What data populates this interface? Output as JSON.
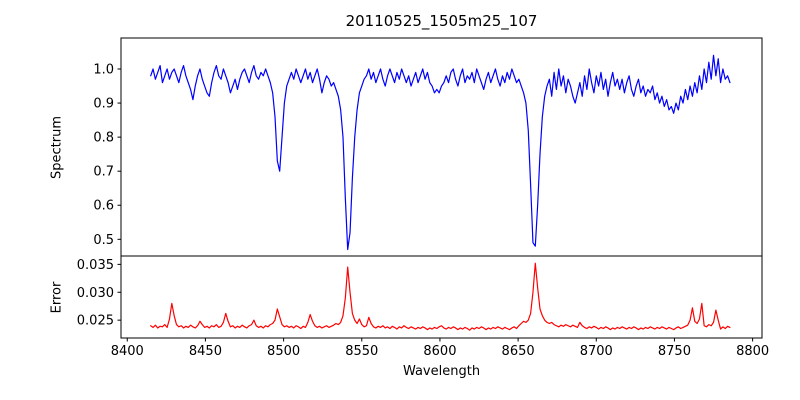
{
  "title": "20110525_1505m25_107",
  "colors": {
    "background": "#ffffff",
    "axis": "#000000",
    "spectrum_line": "#0000ff",
    "error_line": "#ff0000"
  },
  "chart_data": [
    {
      "type": "line",
      "panel": "top",
      "title": "20110525_1505m25_107",
      "ylabel": "Spectrum",
      "grid": false,
      "legend": "none",
      "xlim": [
        8396,
        8806
      ],
      "ylim": [
        0.451,
        1.091
      ],
      "yticks": [
        0.5,
        0.6,
        0.7,
        0.8,
        0.9,
        1.0
      ],
      "ytick_labels": [
        "0.5",
        "0.6",
        "0.7",
        "0.8",
        "0.9",
        "1.0"
      ],
      "x_start": 8415,
      "x_step": 1.5,
      "series": [
        {
          "name": "spectrum",
          "color": "#0000ff",
          "values": [
            0.98,
            1.0,
            0.97,
            0.99,
            1.01,
            0.96,
            0.98,
            1.0,
            0.97,
            0.99,
            1.0,
            0.98,
            0.96,
            0.99,
            1.01,
            0.98,
            0.96,
            0.94,
            0.91,
            0.95,
            0.98,
            1.0,
            0.97,
            0.95,
            0.93,
            0.92,
            0.96,
            0.99,
            1.01,
            0.98,
            0.97,
            1.0,
            0.98,
            0.96,
            0.93,
            0.95,
            0.97,
            0.94,
            0.97,
            0.99,
            1.0,
            0.98,
            0.96,
            0.99,
            1.01,
            0.98,
            0.97,
            0.99,
            0.98,
            1.0,
            0.98,
            0.96,
            0.93,
            0.86,
            0.73,
            0.7,
            0.8,
            0.9,
            0.95,
            0.97,
            0.99,
            0.97,
            1.0,
            0.98,
            0.96,
            0.98,
            1.0,
            0.97,
            0.99,
            0.96,
            0.98,
            1.0,
            0.97,
            0.93,
            0.96,
            0.98,
            0.97,
            0.95,
            0.96,
            0.94,
            0.92,
            0.88,
            0.8,
            0.62,
            0.47,
            0.52,
            0.68,
            0.8,
            0.88,
            0.93,
            0.95,
            0.97,
            0.98,
            1.0,
            0.97,
            0.99,
            0.96,
            0.98,
            1.0,
            0.97,
            0.95,
            0.98,
            1.0,
            0.98,
            0.96,
            0.99,
            0.97,
            1.0,
            0.98,
            0.96,
            0.98,
            0.95,
            0.97,
            0.99,
            0.96,
            0.98,
            1.0,
            0.97,
            0.99,
            0.96,
            0.95,
            0.93,
            0.94,
            0.93,
            0.95,
            0.96,
            0.98,
            0.96,
            0.99,
            1.0,
            0.97,
            0.95,
            0.98,
            1.0,
            0.96,
            0.98,
            0.97,
            0.99,
            0.96,
            1.0,
            0.98,
            0.96,
            0.94,
            0.97,
            0.99,
            0.96,
            0.98,
            1.0,
            0.97,
            0.95,
            0.98,
            0.96,
            0.99,
            0.97,
            1.0,
            0.98,
            0.96,
            0.97,
            0.95,
            0.93,
            0.9,
            0.82,
            0.66,
            0.49,
            0.48,
            0.6,
            0.75,
            0.86,
            0.92,
            0.95,
            0.97,
            0.92,
            0.99,
            0.94,
            1.0,
            0.95,
            0.98,
            0.93,
            0.97,
            0.95,
            0.92,
            0.9,
            0.93,
            0.96,
            0.92,
            0.98,
            0.94,
            1.0,
            0.96,
            0.93,
            0.98,
            0.95,
            0.99,
            0.94,
            0.97,
            0.92,
            0.96,
            0.99,
            0.95,
            0.97,
            0.94,
            0.97,
            0.93,
            0.96,
            0.98,
            0.94,
            0.92,
            0.95,
            0.97,
            0.93,
            0.95,
            0.92,
            0.94,
            0.93,
            0.95,
            0.91,
            0.93,
            0.9,
            0.92,
            0.89,
            0.91,
            0.88,
            0.89,
            0.87,
            0.9,
            0.88,
            0.92,
            0.9,
            0.94,
            0.91,
            0.95,
            0.92,
            0.96,
            0.93,
            0.98,
            0.94,
            1.0,
            0.96,
            1.02,
            0.97,
            1.04,
            0.98,
            1.03,
            0.96,
            1.0,
            0.97,
            0.98,
            0.96
          ]
        }
      ]
    },
    {
      "type": "line",
      "panel": "bottom",
      "ylabel": "Error",
      "xlabel": "Wavelength",
      "grid": false,
      "legend": "none",
      "xlim": [
        8396,
        8806
      ],
      "ylim": [
        0.0218,
        0.0365
      ],
      "yticks": [
        0.025,
        0.03,
        0.035
      ],
      "ytick_labels": [
        "0.025",
        "0.030",
        "0.035"
      ],
      "xticks": [
        8400,
        8450,
        8500,
        8550,
        8600,
        8650,
        8700,
        8750,
        8800
      ],
      "xtick_labels": [
        "8400",
        "8450",
        "8500",
        "8550",
        "8600",
        "8650",
        "8700",
        "8750",
        "8800"
      ],
      "x_start": 8415,
      "x_step": 1.5,
      "series": [
        {
          "name": "error",
          "color": "#ff0000",
          "values": [
            0.024,
            0.0237,
            0.0241,
            0.0236,
            0.0239,
            0.0238,
            0.0242,
            0.0237,
            0.0252,
            0.028,
            0.0258,
            0.0242,
            0.0238,
            0.024,
            0.0236,
            0.0239,
            0.0237,
            0.0241,
            0.0238,
            0.0236,
            0.024,
            0.0248,
            0.0242,
            0.0237,
            0.0239,
            0.0236,
            0.024,
            0.0238,
            0.0242,
            0.0237,
            0.0239,
            0.0246,
            0.0262,
            0.0248,
            0.0238,
            0.024,
            0.0236,
            0.0239,
            0.0237,
            0.0241,
            0.0238,
            0.0236,
            0.024,
            0.0242,
            0.025,
            0.024,
            0.0237,
            0.0239,
            0.0236,
            0.024,
            0.0238,
            0.0242,
            0.0244,
            0.025,
            0.027,
            0.0256,
            0.0242,
            0.0238,
            0.024,
            0.0237,
            0.0239,
            0.0236,
            0.024,
            0.0238,
            0.0235,
            0.0239,
            0.0237,
            0.0246,
            0.026,
            0.0248,
            0.024,
            0.0237,
            0.0239,
            0.0236,
            0.0238,
            0.024,
            0.0237,
            0.0239,
            0.0241,
            0.0244,
            0.0242,
            0.0246,
            0.0258,
            0.029,
            0.0345,
            0.03,
            0.0262,
            0.025,
            0.0244,
            0.0252,
            0.0242,
            0.0238,
            0.024,
            0.0255,
            0.0244,
            0.0238,
            0.0236,
            0.0239,
            0.0237,
            0.024,
            0.0236,
            0.0238,
            0.0235,
            0.0239,
            0.0237,
            0.0234,
            0.0238,
            0.0236,
            0.024,
            0.0237,
            0.0235,
            0.0238,
            0.0236,
            0.0234,
            0.0237,
            0.0235,
            0.0238,
            0.0236,
            0.0233,
            0.0236,
            0.0234,
            0.0237,
            0.0235,
            0.0238,
            0.024,
            0.0236,
            0.0234,
            0.0237,
            0.0235,
            0.0238,
            0.0236,
            0.0233,
            0.0236,
            0.0234,
            0.0237,
            0.0235,
            0.0232,
            0.0236,
            0.0234,
            0.0237,
            0.0235,
            0.0238,
            0.0236,
            0.0233,
            0.0236,
            0.0234,
            0.0237,
            0.0235,
            0.0238,
            0.0236,
            0.0234,
            0.0237,
            0.0235,
            0.0233,
            0.0236,
            0.0238,
            0.0235,
            0.024,
            0.0244,
            0.0248,
            0.0246,
            0.025,
            0.0262,
            0.03,
            0.0352,
            0.0308,
            0.027,
            0.0258,
            0.025,
            0.0246,
            0.0244,
            0.0246,
            0.0242,
            0.024,
            0.0238,
            0.0241,
            0.0239,
            0.0242,
            0.024,
            0.0238,
            0.0241,
            0.0239,
            0.0237,
            0.0246,
            0.024,
            0.0237,
            0.0235,
            0.0238,
            0.0236,
            0.0239,
            0.0237,
            0.0234,
            0.0237,
            0.0235,
            0.0238,
            0.0236,
            0.0233,
            0.0236,
            0.0234,
            0.0237,
            0.0235,
            0.0238,
            0.0236,
            0.0234,
            0.0237,
            0.0235,
            0.0238,
            0.0236,
            0.0233,
            0.0236,
            0.0234,
            0.0237,
            0.0235,
            0.0238,
            0.0236,
            0.0234,
            0.0237,
            0.0235,
            0.0238,
            0.0236,
            0.0234,
            0.0237,
            0.0235,
            0.0233,
            0.0236,
            0.0238,
            0.0235,
            0.0237,
            0.0239,
            0.0241,
            0.025,
            0.0272,
            0.0248,
            0.0244,
            0.0252,
            0.028,
            0.024,
            0.0238,
            0.0242,
            0.024,
            0.0246,
            0.0268,
            0.025,
            0.0234,
            0.0238,
            0.0235,
            0.0239,
            0.0237
          ]
        }
      ]
    }
  ]
}
